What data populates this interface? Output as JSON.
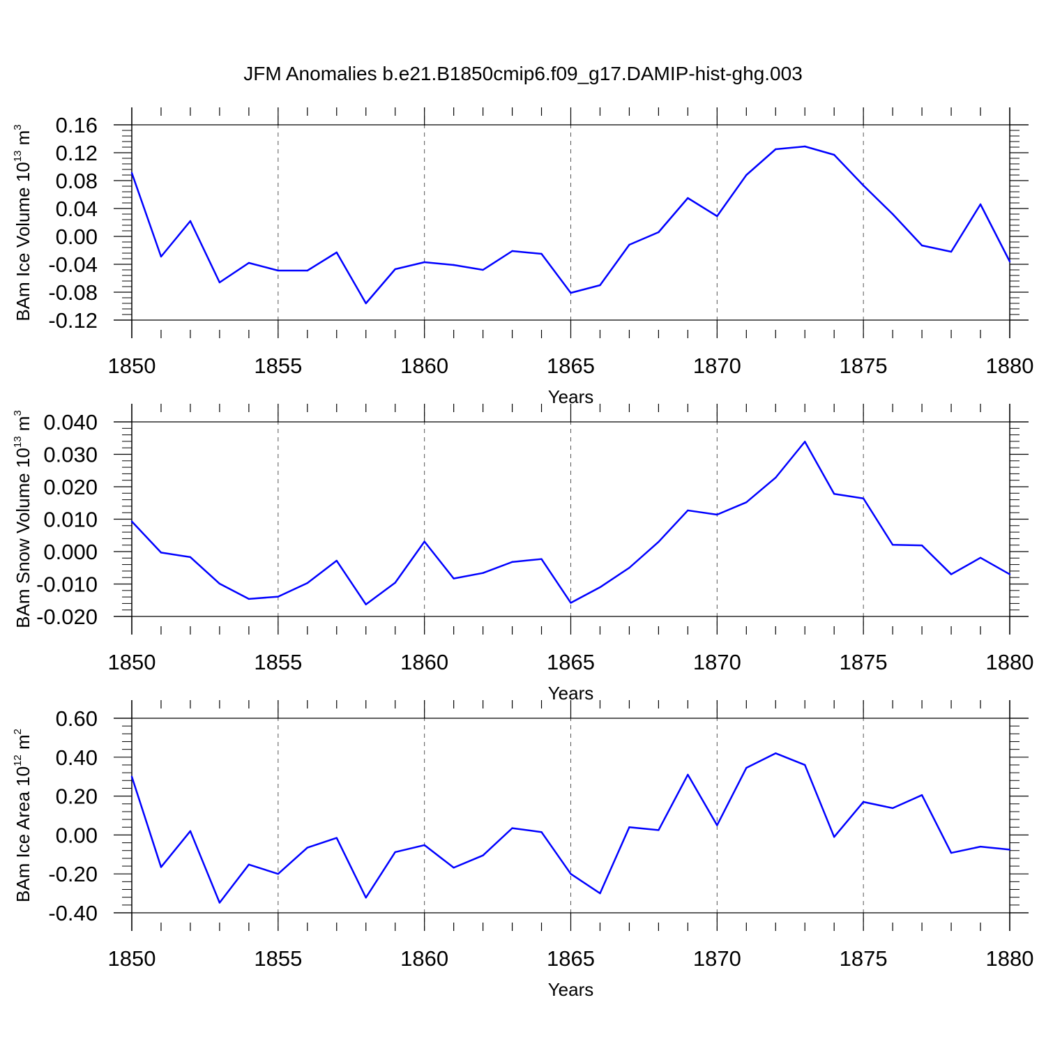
{
  "chart_data": {
    "type": "line",
    "title": "JFM Anomalies b.e21.B1850cmip6.f09_g17.DAMIP-hist-ghg.003",
    "line_color": "#0000ff",
    "grid": "vertical dashed lines at major x ticks",
    "x": [
      1850,
      1851,
      1852,
      1853,
      1854,
      1855,
      1856,
      1857,
      1858,
      1859,
      1860,
      1861,
      1862,
      1863,
      1864,
      1865,
      1866,
      1867,
      1868,
      1869,
      1870,
      1871,
      1872,
      1873,
      1874,
      1875,
      1876,
      1877,
      1878,
      1879,
      1880
    ],
    "panels": [
      {
        "xlabel": "Years",
        "ylabel": {
          "main": "BAm Ice Volume 10",
          "sup": "13",
          "unit": " m",
          "unit_sup": "3"
        },
        "xlim": [
          1850,
          1880
        ],
        "ylim": [
          -0.12,
          0.16
        ],
        "xticks": [
          "1850",
          "1855",
          "1860",
          "1865",
          "1870",
          "1875",
          "1880"
        ],
        "yticks": [
          "-0.12",
          "-0.08",
          "-0.04",
          "0.00",
          "0.04",
          "0.08",
          "0.12",
          "0.16"
        ],
        "values": [
          0.091,
          -0.029,
          0.022,
          -0.066,
          -0.038,
          -0.049,
          -0.049,
          -0.023,
          -0.096,
          -0.047,
          -0.037,
          -0.041,
          -0.048,
          -0.021,
          -0.025,
          -0.081,
          -0.07,
          -0.012,
          0.006,
          0.055,
          0.029,
          0.088,
          0.125,
          0.129,
          0.117,
          0.073,
          0.032,
          -0.013,
          -0.022,
          0.046,
          -0.036
        ]
      },
      {
        "xlabel": "Years",
        "ylabel": {
          "main": "BAm Snow Volume 10",
          "sup": "13",
          "unit": " m",
          "unit_sup": "3"
        },
        "xlim": [
          1850,
          1880
        ],
        "ylim": [
          -0.02,
          0.04
        ],
        "xticks": [
          "1850",
          "1855",
          "1860",
          "1865",
          "1870",
          "1875",
          "1880"
        ],
        "yticks": [
          "-0.020",
          "-0.010",
          "0.000",
          "0.010",
          "0.020",
          "0.030",
          "0.040"
        ],
        "values": [
          0.0093,
          -0.0003,
          -0.0017,
          -0.0099,
          -0.0146,
          -0.0139,
          -0.0097,
          -0.0028,
          -0.0163,
          -0.0096,
          0.0031,
          -0.0083,
          -0.0066,
          -0.0032,
          -0.0023,
          -0.0158,
          -0.011,
          -0.005,
          0.003,
          0.0127,
          0.0114,
          0.0152,
          0.0228,
          0.0339,
          0.0178,
          0.0164,
          0.0021,
          0.0019,
          -0.007,
          -0.0019,
          -0.007
        ]
      },
      {
        "xlabel": "Years",
        "ylabel": {
          "main": "BAm Ice Area 10",
          "sup": "12",
          "unit": " m",
          "unit_sup": "2"
        },
        "xlim": [
          1850,
          1880
        ],
        "ylim": [
          -0.4,
          0.6
        ],
        "xticks": [
          "1850",
          "1855",
          "1860",
          "1865",
          "1870",
          "1875",
          "1880"
        ],
        "yticks": [
          "-0.40",
          "-0.20",
          "0.00",
          "0.20",
          "0.40",
          "0.60"
        ],
        "values": [
          0.3,
          -0.165,
          0.02,
          -0.348,
          -0.152,
          -0.2,
          -0.065,
          -0.015,
          -0.322,
          -0.088,
          -0.052,
          -0.168,
          -0.105,
          0.035,
          0.015,
          -0.2,
          -0.3,
          0.04,
          0.025,
          0.31,
          0.05,
          0.345,
          0.42,
          0.36,
          -0.01,
          0.17,
          0.138,
          0.205,
          -0.092,
          -0.06,
          -0.075
        ]
      }
    ]
  }
}
